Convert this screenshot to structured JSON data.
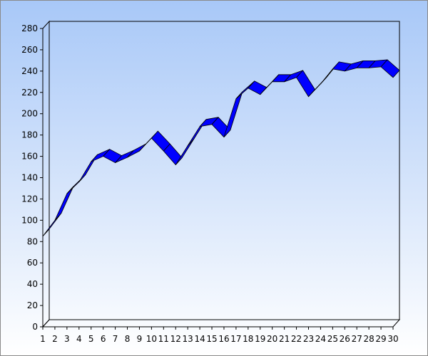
{
  "chart_data": {
    "type": "line",
    "style": "3d-ribbon",
    "x": [
      1,
      2,
      3,
      4,
      5,
      6,
      7,
      8,
      9,
      10,
      11,
      12,
      13,
      14,
      15,
      16,
      17,
      18,
      19,
      20,
      21,
      22,
      23,
      24,
      25,
      26,
      27,
      28,
      29,
      30
    ],
    "series": [
      {
        "values": [
          85,
          100,
          125,
          136,
          155,
          160,
          154,
          159,
          165,
          177,
          165,
          152,
          170,
          188,
          190,
          178,
          214,
          224,
          218,
          230,
          230,
          234,
          216,
          228,
          242,
          240,
          243,
          243,
          244,
          234
        ],
        "color": "#0000ff"
      }
    ],
    "ylim": [
      0,
      280
    ],
    "yticks": [
      0,
      20,
      40,
      60,
      80,
      100,
      120,
      140,
      160,
      180,
      200,
      220,
      240,
      260,
      280
    ],
    "xticks": [
      1,
      2,
      3,
      4,
      5,
      6,
      7,
      8,
      9,
      10,
      11,
      12,
      13,
      14,
      15,
      16,
      17,
      18,
      19,
      20,
      21,
      22,
      23,
      24,
      25,
      26,
      27,
      28,
      29,
      30
    ],
    "grid": false,
    "legend": "none",
    "background": "gradient-blue-to-white"
  }
}
